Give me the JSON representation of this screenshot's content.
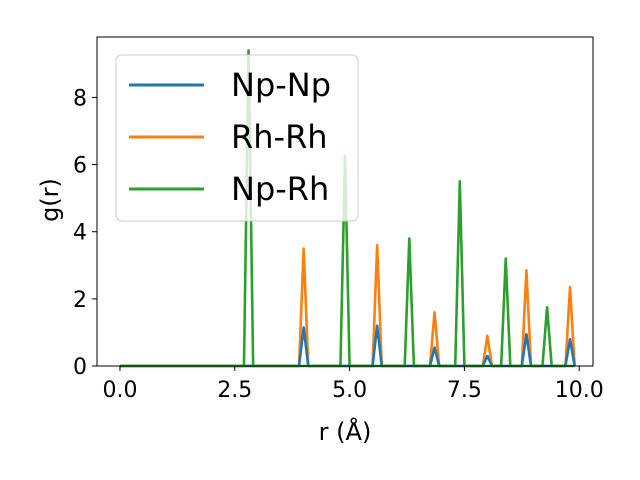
{
  "chart_data": {
    "type": "line",
    "xlabel": "r (Å)",
    "ylabel": "g(r)",
    "xlim": [
      -0.5,
      10.3
    ],
    "ylim": [
      0,
      9.8
    ],
    "xticks": [
      0.0,
      2.5,
      5.0,
      7.5,
      10.0
    ],
    "xtick_labels": [
      "0.0",
      "2.5",
      "5.0",
      "7.5",
      "10.0"
    ],
    "yticks": [
      0,
      2,
      4,
      6,
      8
    ],
    "ytick_labels": [
      "0",
      "2",
      "4",
      "6",
      "8"
    ],
    "grid": false,
    "legend_position": "upper-left",
    "series": [
      {
        "name": "Np-Np",
        "color": "#1f77b4",
        "peaks": [
          [
            4.0,
            1.15
          ],
          [
            5.6,
            1.2
          ],
          [
            6.85,
            0.55
          ],
          [
            8.0,
            0.3
          ],
          [
            8.85,
            0.95
          ],
          [
            9.8,
            0.8
          ]
        ]
      },
      {
        "name": "Rh-Rh",
        "color": "#ff7f0e",
        "peaks": [
          [
            4.0,
            3.5
          ],
          [
            5.6,
            3.6
          ],
          [
            6.85,
            1.6
          ],
          [
            8.0,
            0.9
          ],
          [
            8.85,
            2.85
          ],
          [
            9.8,
            2.35
          ]
        ]
      },
      {
        "name": "Np-Rh",
        "color": "#2ca02c",
        "peaks": [
          [
            2.8,
            9.4
          ],
          [
            4.9,
            6.25
          ],
          [
            6.3,
            3.8
          ],
          [
            7.4,
            5.5
          ],
          [
            8.4,
            3.2
          ],
          [
            9.3,
            1.75
          ]
        ]
      }
    ],
    "x_range": [
      0,
      9.9
    ],
    "peak_halfwidth": 0.1
  }
}
